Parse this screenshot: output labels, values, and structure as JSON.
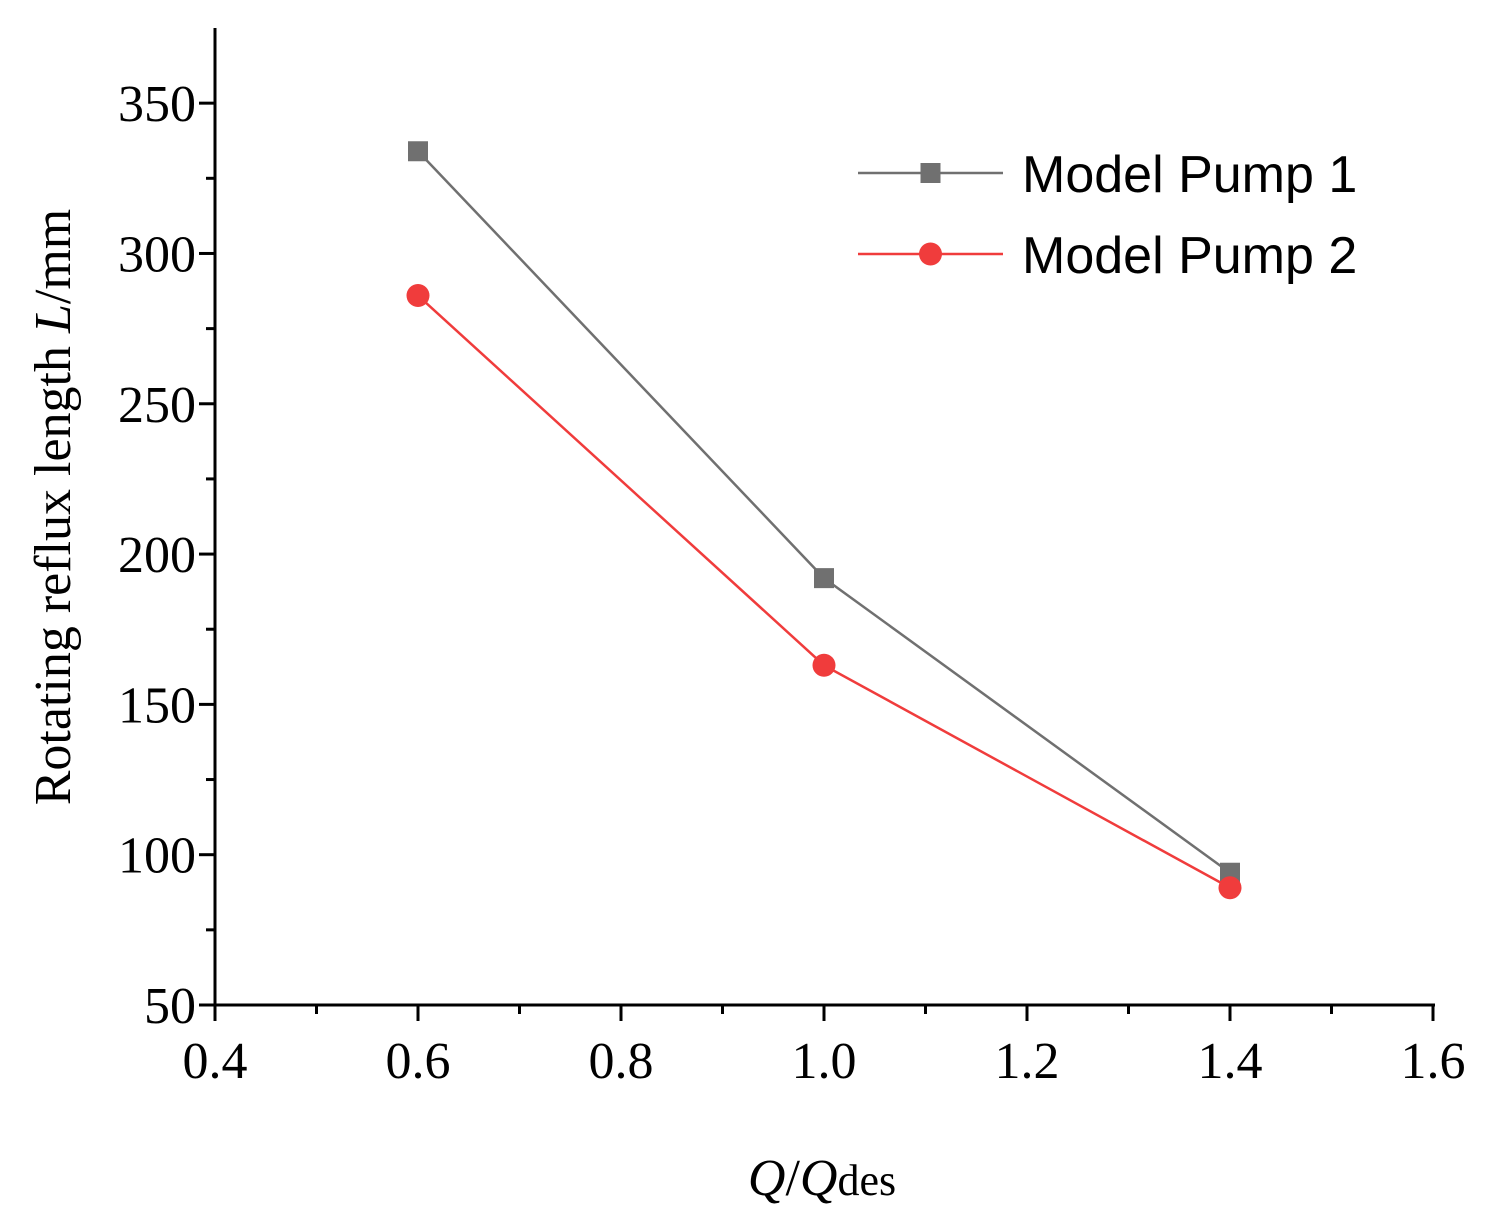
{
  "chart_data": {
    "type": "line",
    "title": "",
    "xlabel": {
      "italic_1": "Q",
      "slash": "/",
      "italic_2": "Q",
      "subscript": "des"
    },
    "ylabel": {
      "text": "Rotating reflux length ",
      "italic": "L",
      "unit": "/mm"
    },
    "xlim": [
      0.4,
      1.6
    ],
    "ylim": [
      50,
      375
    ],
    "x_major_ticks": [
      0.4,
      0.6,
      0.8,
      1.0,
      1.2,
      1.4,
      1.6
    ],
    "x_tick_labels": [
      "0.4",
      "0.6",
      "0.8",
      "1.0",
      "1.2",
      "1.4",
      "1.6"
    ],
    "x_minor_ticks": [
      0.5,
      0.7,
      0.9,
      1.1,
      1.3,
      1.5
    ],
    "y_major_ticks": [
      50,
      100,
      150,
      200,
      250,
      300,
      350
    ],
    "y_tick_labels": [
      "50",
      "100",
      "150",
      "200",
      "250",
      "300",
      "350"
    ],
    "y_minor_ticks": [
      75,
      125,
      175,
      225,
      275,
      325
    ],
    "legend_position": "top-right",
    "series": [
      {
        "name": "Model Pump 1",
        "marker": "square",
        "color": "#707070",
        "x": [
          0.6,
          1.0,
          1.4
        ],
        "values": [
          334,
          192,
          94
        ]
      },
      {
        "name": "Model Pump 2",
        "marker": "circle",
        "color": "#f03c3c",
        "x": [
          0.6,
          1.0,
          1.4
        ],
        "values": [
          286,
          163,
          89
        ]
      }
    ]
  }
}
